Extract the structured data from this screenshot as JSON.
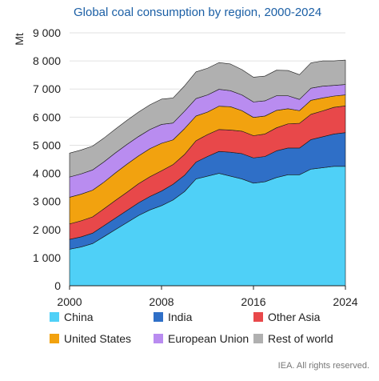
{
  "chart_data": {
    "type": "area",
    "stacked": true,
    "title": "Global coal consumption by region, 2000-2024",
    "ylabel": "Mt",
    "xlabel": "",
    "x": [
      2000,
      2001,
      2002,
      2003,
      2004,
      2005,
      2006,
      2007,
      2008,
      2009,
      2010,
      2011,
      2012,
      2013,
      2014,
      2015,
      2016,
      2017,
      2018,
      2019,
      2020,
      2021,
      2022,
      2023,
      2024
    ],
    "xlim": [
      2000,
      2024
    ],
    "ylim": [
      0,
      9000
    ],
    "x_ticks": [
      "2000",
      "2008",
      "2016",
      "2024"
    ],
    "x_tick_values": [
      2000,
      2008,
      2016,
      2024
    ],
    "y_ticks": [
      "0",
      "1 000",
      "2 000",
      "3 000",
      "4 000",
      "5 000",
      "6 000",
      "7 000",
      "8 000",
      "9 000"
    ],
    "y_tick_values": [
      0,
      1000,
      2000,
      3000,
      4000,
      5000,
      6000,
      7000,
      8000,
      9000
    ],
    "grid": "horizontal",
    "legend_position": "bottom",
    "series": [
      {
        "name": "China",
        "color": "#4fd0f7",
        "values": [
          1300,
          1380,
          1500,
          1750,
          2000,
          2250,
          2500,
          2700,
          2850,
          3050,
          3350,
          3800,
          3900,
          4000,
          3900,
          3800,
          3650,
          3700,
          3850,
          3950,
          3950,
          4150,
          4200,
          4250,
          4250
        ]
      },
      {
        "name": "India",
        "color": "#2f6fc7",
        "values": [
          350,
          360,
          370,
          390,
          410,
          430,
          450,
          480,
          520,
          560,
          580,
          600,
          700,
          780,
          850,
          900,
          900,
          900,
          950,
          950,
          950,
          1050,
          1100,
          1150,
          1200
        ]
      },
      {
        "name": "Other Asia",
        "color": "#e8484a",
        "values": [
          550,
          570,
          580,
          600,
          630,
          650,
          680,
          700,
          720,
          700,
          740,
          760,
          780,
          780,
          790,
          800,
          790,
          800,
          820,
          860,
          880,
          900,
          920,
          950,
          950
        ]
      },
      {
        "name": "United States",
        "color": "#f2a20f",
        "values": [
          950,
          950,
          950,
          950,
          980,
          1000,
          990,
          1000,
          980,
          880,
          920,
          880,
          800,
          830,
          830,
          730,
          650,
          640,
          620,
          540,
          450,
          500,
          460,
          400,
          390
        ]
      },
      {
        "name": "European Union",
        "color": "#b98cf0",
        "values": [
          720,
          720,
          720,
          720,
          710,
          700,
          690,
          680,
          670,
          600,
          620,
          620,
          610,
          600,
          570,
          560,
          550,
          540,
          520,
          460,
          400,
          430,
          420,
          380,
          370
        ]
      },
      {
        "name": "Rest of world",
        "color": "#b0b0b0",
        "values": [
          850,
          850,
          850,
          850,
          850,
          860,
          870,
          880,
          900,
          890,
          900,
          950,
          950,
          950,
          950,
          900,
          880,
          880,
          910,
          900,
          880,
          900,
          900,
          870,
          870
        ]
      }
    ],
    "credit": "IEA. All rights reserved."
  }
}
